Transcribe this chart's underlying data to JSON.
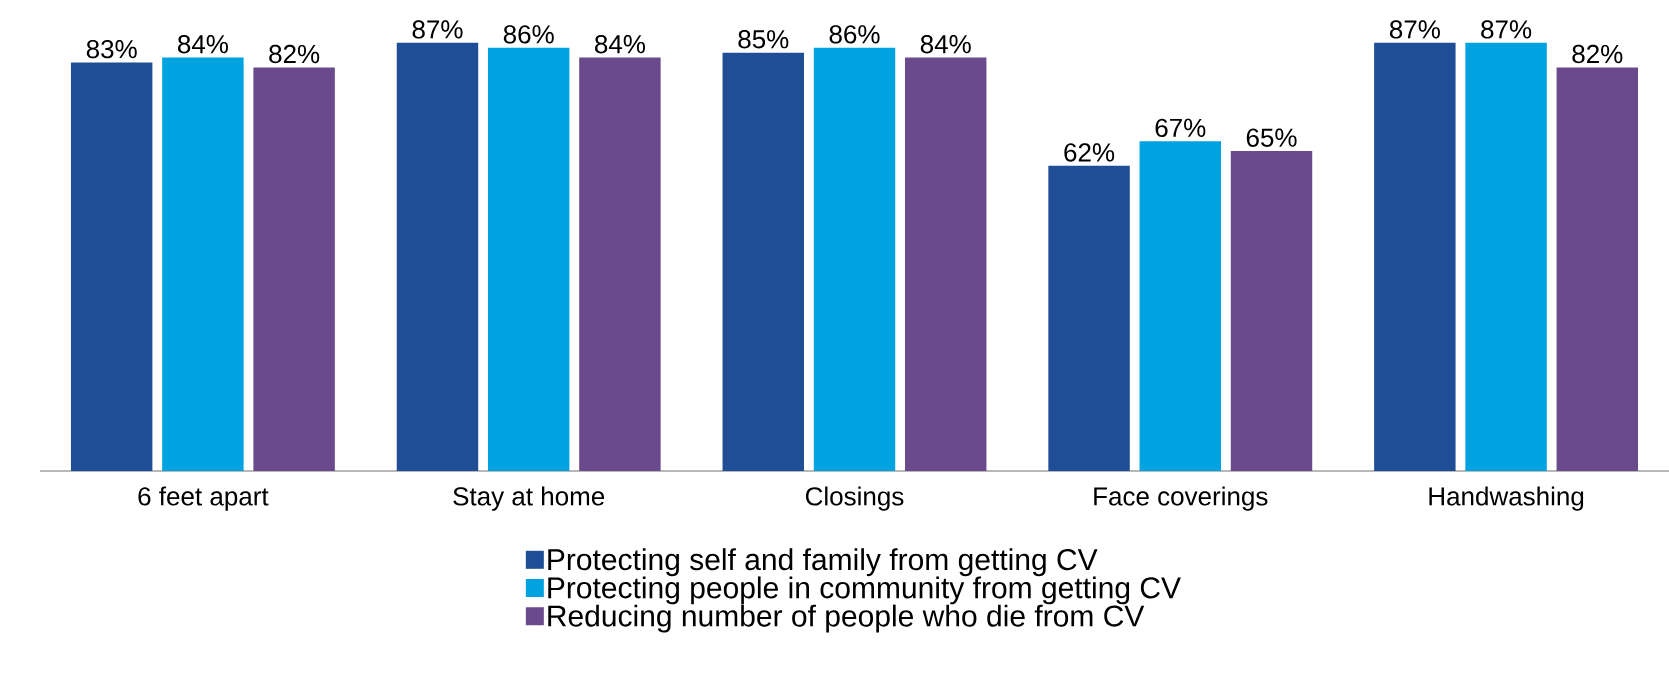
{
  "chart_data": {
    "type": "bar",
    "categories": [
      "6 feet apart",
      "Stay at home",
      "Closings",
      "Face coverings",
      "Handwashing"
    ],
    "series": [
      {
        "name": "Protecting self and family from getting CV",
        "color": "#1f4e96",
        "values": [
          83,
          87,
          85,
          62,
          87
        ],
        "value_labels": [
          "83%",
          "87%",
          "85%",
          "62%",
          "87%"
        ]
      },
      {
        "name": "Protecting people in community from getting CV",
        "color": "#00a3e0",
        "values": [
          84,
          86,
          86,
          67,
          87
        ],
        "value_labels": [
          "84%",
          "86%",
          "86%",
          "67%",
          "87%"
        ]
      },
      {
        "name": "Reducing number of people who die from CV",
        "color": "#6a4a8c",
        "values": [
          82,
          84,
          84,
          65,
          82
        ],
        "value_labels": [
          "82%",
          "84%",
          "84%",
          "65%",
          "82%"
        ]
      }
    ],
    "legend": "bottom"
  }
}
